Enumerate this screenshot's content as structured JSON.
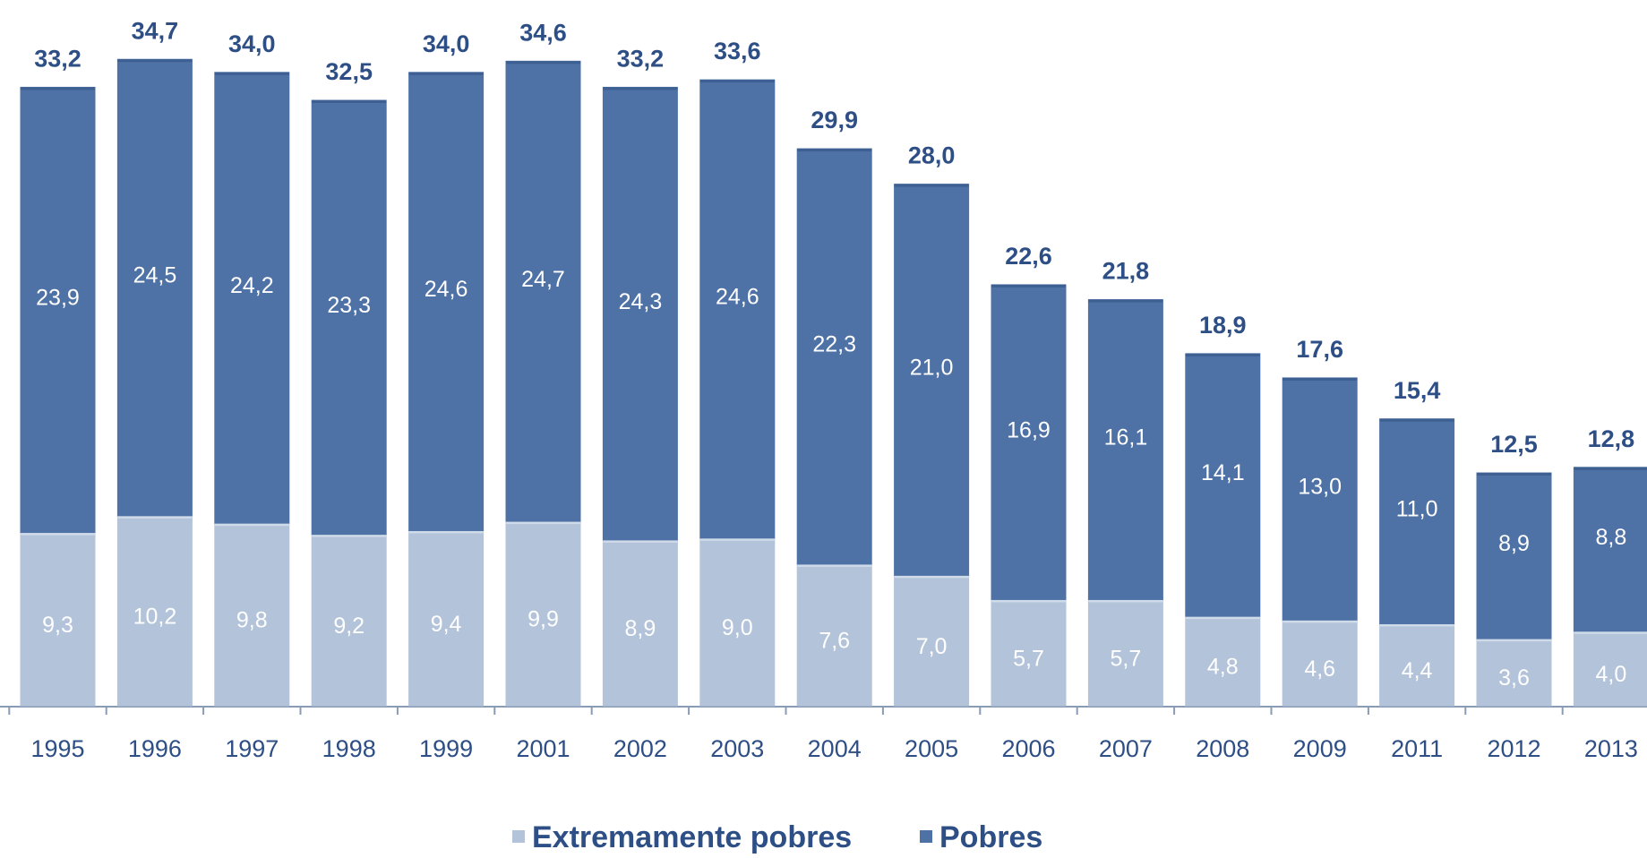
{
  "chart_data": {
    "type": "stacked-bar",
    "categories": [
      "1995",
      "1996",
      "1997",
      "1998",
      "1999",
      "2001",
      "2002",
      "2003",
      "2004",
      "2005",
      "2006",
      "2007",
      "2008",
      "2009",
      "2011",
      "2012",
      "2013"
    ],
    "series": [
      {
        "name": "Extremamente pobres",
        "color": "#b3c3da",
        "values": [
          9.3,
          10.2,
          9.8,
          9.2,
          9.4,
          9.9,
          8.9,
          9.0,
          7.6,
          7.0,
          5.7,
          5.7,
          4.8,
          4.6,
          4.4,
          3.6,
          4.0
        ],
        "value_labels": [
          "9,3",
          "10,2",
          "9,8",
          "9,2",
          "9,4",
          "9,9",
          "8,9",
          "9,0",
          "7,6",
          "7,0",
          "5,7",
          "5,7",
          "4,8",
          "4,6",
          "4,4",
          "3,6",
          "4,0"
        ]
      },
      {
        "name": "Pobres",
        "color": "#4f72a6",
        "values": [
          23.9,
          24.5,
          24.2,
          23.3,
          24.6,
          24.7,
          24.3,
          24.6,
          22.3,
          21.0,
          16.9,
          16.1,
          14.1,
          13.0,
          11.0,
          8.9,
          8.8
        ],
        "value_labels": [
          "23,9",
          "24,5",
          "24,2",
          "23,3",
          "24,6",
          "24,7",
          "24,3",
          "24,6",
          "22,3",
          "21,0",
          "16,9",
          "16,1",
          "14,1",
          "13,0",
          "11,0",
          "8,9",
          "8,8"
        ]
      }
    ],
    "totals": {
      "values": [
        33.2,
        34.7,
        34.0,
        32.5,
        34.0,
        34.6,
        33.2,
        33.6,
        29.9,
        28.0,
        22.6,
        21.8,
        18.9,
        17.6,
        15.4,
        12.5,
        12.8
      ],
      "value_labels": [
        "33,2",
        "34,7",
        "34,0",
        "32,5",
        "34,0",
        "34,6",
        "33,2",
        "33,6",
        "29,9",
        "28,0",
        "22,6",
        "21,8",
        "18,9",
        "17,6",
        "15,4",
        "12,5",
        "12,8"
      ]
    },
    "ylim": [
      0,
      35
    ]
  }
}
